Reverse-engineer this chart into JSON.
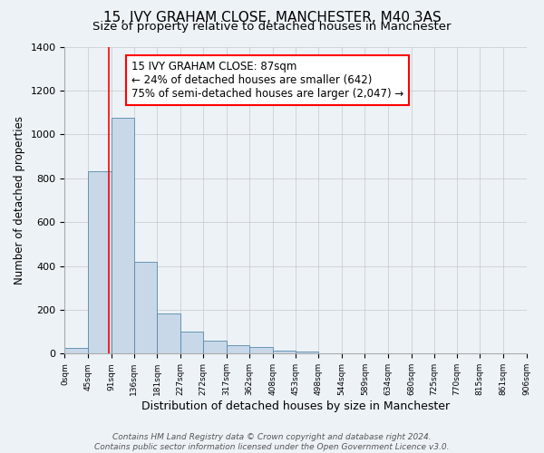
{
  "title": "15, IVY GRAHAM CLOSE, MANCHESTER, M40 3AS",
  "subtitle": "Size of property relative to detached houses in Manchester",
  "xlabel": "Distribution of detached houses by size in Manchester",
  "ylabel": "Number of detached properties",
  "footer_line1": "Contains HM Land Registry data © Crown copyright and database right 2024.",
  "footer_line2": "Contains public sector information licensed under the Open Government Licence v3.0.",
  "bar_edges": [
    0,
    45,
    91,
    136,
    181,
    227,
    272,
    317,
    362,
    408,
    453,
    498,
    544,
    589,
    634,
    680,
    725,
    770,
    815,
    861,
    906
  ],
  "bar_heights": [
    25,
    830,
    1075,
    420,
    185,
    100,
    58,
    38,
    30,
    15,
    8,
    3,
    1,
    0,
    0,
    0,
    0,
    0,
    0,
    0
  ],
  "bar_color": "#c8d8e8",
  "bar_edge_color": "#5588aa",
  "red_line_x": 87,
  "annotation_text_line1": "15 IVY GRAHAM CLOSE: 87sqm",
  "annotation_text_line2": "← 24% of detached houses are smaller (642)",
  "annotation_text_line3": "75% of semi-detached houses are larger (2,047) →",
  "ylim": [
    0,
    1400
  ],
  "xlim": [
    0,
    906
  ],
  "tick_labels": [
    "0sqm",
    "45sqm",
    "91sqm",
    "136sqm",
    "181sqm",
    "227sqm",
    "272sqm",
    "317sqm",
    "362sqm",
    "408sqm",
    "453sqm",
    "498sqm",
    "544sqm",
    "589sqm",
    "634sqm",
    "680sqm",
    "725sqm",
    "770sqm",
    "815sqm",
    "861sqm",
    "906sqm"
  ],
  "tick_positions": [
    0,
    45,
    91,
    136,
    181,
    227,
    272,
    317,
    362,
    408,
    453,
    498,
    544,
    589,
    634,
    680,
    725,
    770,
    815,
    861,
    906
  ],
  "background_color": "#edf2f7",
  "plot_background_color": "#edf2f7",
  "grid_color": "#c8c8c8",
  "title_fontsize": 11,
  "subtitle_fontsize": 9.5,
  "annotation_fontsize": 8.5,
  "xlabel_fontsize": 9,
  "ylabel_fontsize": 8.5,
  "footer_fontsize": 6.5
}
